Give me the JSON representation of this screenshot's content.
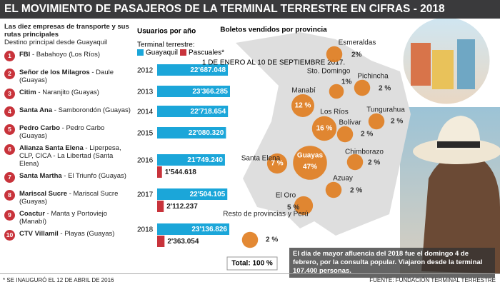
{
  "title": "EL MOVIMIENTO DE PASAJEROS DE LA TERMINAL TERRESTRE EN CIFRAS - 2018",
  "companies": {
    "heading": "Las diez empresas de transporte y sus rutas principales",
    "subheading": "Destino principal desde Guayaquil",
    "items": [
      {
        "number": "1",
        "name": "FBI",
        "route": "Babahoyo (Los Ríos)"
      },
      {
        "number": "2",
        "name": "Señor de los Milagros",
        "route": "Daule (Guayas)"
      },
      {
        "number": "3",
        "name": "Citim",
        "route": "Naranjito (Guayas)"
      },
      {
        "number": "4",
        "name": "Santa Ana",
        "route": "Samborondón (Guayas)"
      },
      {
        "number": "5",
        "name": "Pedro Carbo",
        "route": "Pedro Carbo (Guayas)"
      },
      {
        "number": "6",
        "name": "Alianza Santa Elena",
        "route": "Liperpesa, CLP, CICA - La Libertad (Santa Elena)"
      },
      {
        "number": "7",
        "name": "Santa Martha",
        "route": "El Triunfo (Guayas)"
      },
      {
        "number": "8",
        "name": "Mariscal Sucre",
        "route": "Mariscal Sucre (Guayas)"
      },
      {
        "number": "9",
        "name": "Coactur",
        "route": "Manta y Portoviejo (Manabí)"
      },
      {
        "number": "10",
        "name": "CTV Villamil",
        "route": "Playas (Guayas)"
      }
    ]
  },
  "chart_data": [
    {
      "type": "bar",
      "orientation": "horizontal",
      "title": "Usuarios por año",
      "subtitle": "Terminal terrestre:",
      "categories": [
        "2012",
        "2013",
        "2014",
        "2015",
        "2016",
        "2017",
        "2018"
      ],
      "series": [
        {
          "name": "Guayaquil",
          "color": "#1ba6d9",
          "values": [
            22687048,
            23366285,
            22718654,
            22080320,
            21749240,
            22504105,
            23136826
          ],
          "value_labels": [
            "22'687.048",
            "23'366.285",
            "22'718.654",
            "22'080.320",
            "21'749.240",
            "22'504.105",
            "23'136.826"
          ]
        },
        {
          "name": "Pascuales*",
          "color": "#c8333b",
          "values": [
            null,
            null,
            null,
            null,
            1544618,
            2112237,
            2363054
          ],
          "value_labels": [
            null,
            null,
            null,
            null,
            "1'544.618",
            "2'112.237",
            "2'363.054"
          ]
        }
      ]
    },
    {
      "type": "bubble",
      "title": "Boletos vendidos por provincia",
      "subtitle": "1 DE ENERO AL 10 DE SEPTIEMBRE 2017.",
      "color": "#e07c1e",
      "categories": [
        "Esmeraldas",
        "Sto. Domingo",
        "Pichincha",
        "Manabí",
        "Los Ríos",
        "Tungurahua",
        "Bolívar",
        "Santa Elena",
        "Guayas",
        "Chimborazo",
        "Azuay",
        "El Oro",
        "Resto de provincias y Perú"
      ],
      "values": [
        2,
        1,
        2,
        12,
        16,
        2,
        2,
        7,
        47,
        2,
        2,
        5,
        2
      ],
      "value_labels": [
        "2%",
        "1%",
        "2 %",
        "12 %",
        "16 %",
        "2 %",
        "2 %",
        "7 %",
        "47%",
        "2 %",
        "2 %",
        "5 %",
        "2 %"
      ],
      "total": "Total: 100 %"
    }
  ],
  "caption": "El día de mayor afluencia del 2018 fue el domingo 4 de febrero, por la consulta popular. Viajaron desde la terminal 107.400 personas.",
  "footnote": "* SE INAUGURÓ EL 12 DE ABRIL DE 2016",
  "source": "FUENTE: FUNDACIÓN TERMINAL TERRESTRE"
}
